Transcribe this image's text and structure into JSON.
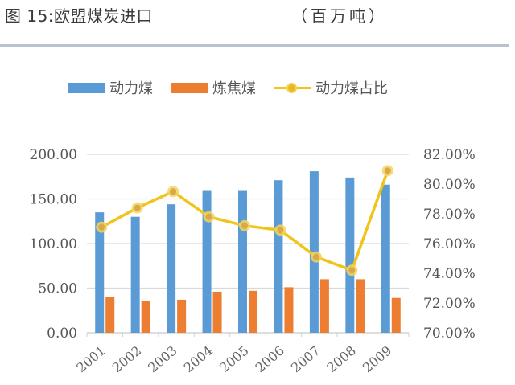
{
  "header": {
    "title": "图 15:欧盟煤炭进口",
    "unit": "（百万吨）"
  },
  "legend": [
    {
      "label": "动力煤",
      "type": "bar",
      "color": "#5b9bd5"
    },
    {
      "label": "炼焦煤",
      "type": "bar",
      "color": "#ed7d31"
    },
    {
      "label": "动力煤占比",
      "type": "line",
      "color": "#f0c419"
    }
  ],
  "chart_data": {
    "type": "bar",
    "title": "图 15:欧盟煤炭进口（百万吨）",
    "categories": [
      "2001",
      "2002",
      "2003",
      "2004",
      "2005",
      "2006",
      "2007",
      "2008",
      "2009"
    ],
    "series": [
      {
        "name": "动力煤",
        "type": "bar",
        "axis": "left",
        "color": "#5b9bd5",
        "values": [
          135,
          130,
          144,
          159,
          159,
          171,
          181,
          174,
          166
        ]
      },
      {
        "name": "炼焦煤",
        "type": "bar",
        "axis": "left",
        "color": "#ed7d31",
        "values": [
          40,
          36,
          37,
          46,
          47,
          51,
          60,
          60,
          39
        ]
      },
      {
        "name": "动力煤占比",
        "type": "line",
        "axis": "right",
        "color": "#f0c419",
        "values": [
          77.1,
          78.4,
          79.5,
          77.8,
          77.2,
          76.9,
          75.1,
          74.2,
          80.9
        ]
      }
    ],
    "xlabel": "",
    "ylabel": "百万吨",
    "ylim": [
      0,
      200
    ],
    "y2lim": [
      70,
      82
    ],
    "left_ticks": [
      "0.00",
      "50.00",
      "100.00",
      "150.00",
      "200.00"
    ],
    "right_ticks": [
      "70.00%",
      "72.00%",
      "74.00%",
      "76.00%",
      "78.00%",
      "80.00%",
      "82.00%"
    ],
    "grid": true,
    "legend_position": "top"
  }
}
